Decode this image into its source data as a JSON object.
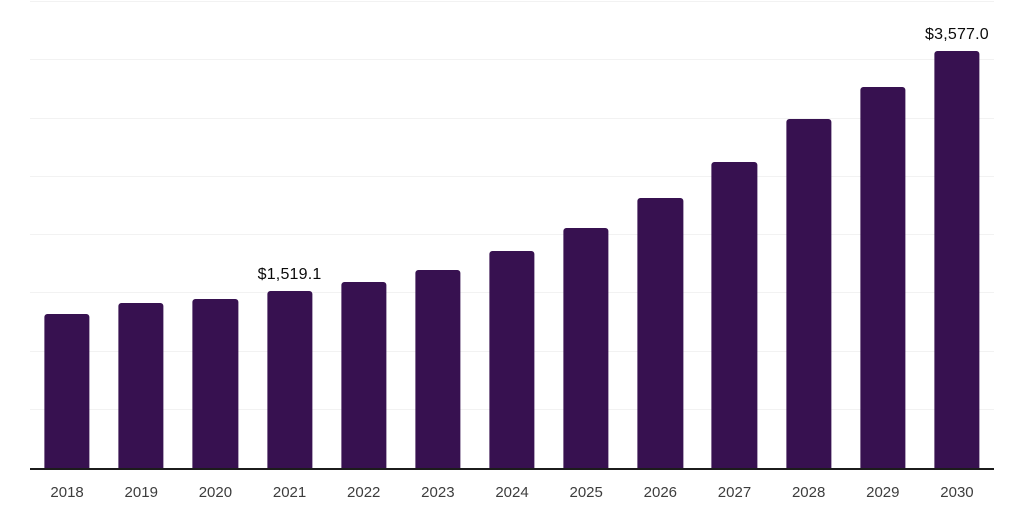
{
  "chart_data": {
    "type": "bar",
    "title": "",
    "xlabel": "",
    "ylabel": "",
    "categories": [
      "2018",
      "2019",
      "2020",
      "2021",
      "2022",
      "2023",
      "2024",
      "2025",
      "2026",
      "2027",
      "2028",
      "2029",
      "2030"
    ],
    "values": [
      1325.0,
      1419.0,
      1450.0,
      1519.1,
      1600.0,
      1700.0,
      1863.0,
      2062.0,
      2315.0,
      2625.0,
      2994.0,
      3272.0,
      3577.0
    ],
    "value_labels": [
      "",
      "",
      "",
      "$1,519.1",
      "",
      "",
      "",
      "",
      "",
      "",
      "",
      "",
      "$3,577.0"
    ],
    "labeled_points": [
      {
        "category": "2021",
        "label": "$1,519.1"
      },
      {
        "category": "2030",
        "label": "$3,577.0"
      }
    ],
    "ylim": [
      0,
      4000
    ],
    "gridline_interval": 500,
    "grid": "horizontal",
    "legend": "none",
    "y_tick_labels_visible": false,
    "colors": {
      "bar": "#371150",
      "axis_line": "#1c1c1c",
      "gridline": "#f2f2f2",
      "value_label": "#0b0b0b",
      "tick_label": "#3d3d3d",
      "background": "#ffffff"
    }
  }
}
